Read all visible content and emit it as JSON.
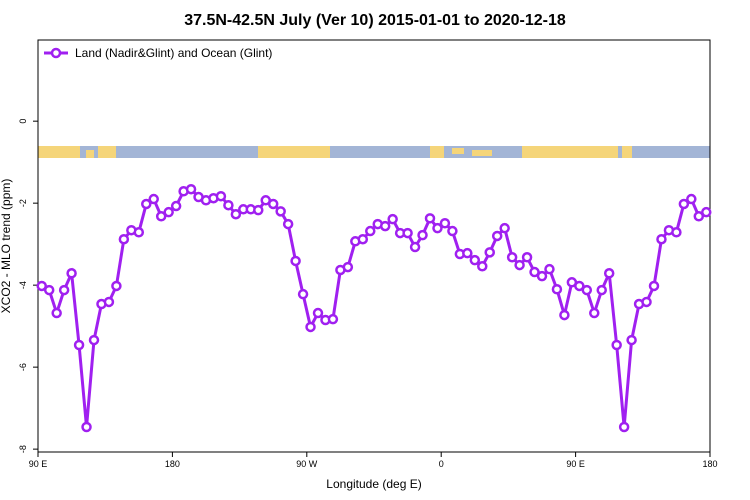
{
  "chart_data": {
    "type": "line",
    "title": "37.5N-42.5N July (Ver 10)   2015-01-01 to 2020-12-18",
    "x_label": "Longitude (deg E)",
    "y_label": "XCO2 - MLO trend (ppm)",
    "legend": "top-left",
    "x": [
      92.5,
      97.5,
      102.5,
      107.5,
      112.5,
      117.5,
      122.5,
      127.5,
      132.5,
      137.5,
      142.5,
      147.5,
      152.5,
      157.5,
      162.5,
      167.5,
      172.5,
      177.5,
      182.5,
      187.5,
      192.5,
      197.5,
      202.5,
      207.5,
      212.5,
      217.5,
      222.5,
      227.5,
      232.5,
      237.5,
      242.5,
      247.5,
      252.5,
      257.5,
      262.5,
      267.5,
      272.5,
      277.5,
      282.5,
      287.5,
      292.5,
      297.5,
      302.5,
      307.5,
      312.5,
      317.5,
      322.5,
      327.5,
      332.5,
      337.5,
      342.5,
      347.5,
      352.5,
      357.5,
      362.5,
      367.5,
      372.5,
      377.5,
      382.5,
      387.5,
      392.5,
      397.5,
      402.5,
      407.5,
      412.5,
      417.5,
      422.5,
      427.5,
      432.5,
      437.5,
      442.5,
      447.5,
      452.5,
      457.5,
      462.5,
      467.5,
      472.5,
      477.5,
      482.5,
      487.5,
      492.5,
      497.5,
      502.5,
      507.5,
      512.5,
      517.5,
      522.5,
      527.5,
      532.5,
      537.5
    ],
    "series": [
      {
        "name": "Land (Nadir&Glint) and Ocean (Glint)",
        "color": "#a020f0",
        "values": [
          -4.02,
          -4.12,
          -4.68,
          -4.12,
          -3.71,
          -5.46,
          -7.46,
          -5.34,
          -4.46,
          -4.41,
          -4.02,
          -2.88,
          -2.66,
          -2.71,
          -2.02,
          -1.9,
          -2.32,
          -2.22,
          -2.07,
          -1.71,
          -1.66,
          -1.85,
          -1.93,
          -1.88,
          -1.83,
          -2.05,
          -2.27,
          -2.15,
          -2.15,
          -2.17,
          -1.93,
          -2.02,
          -2.2,
          -2.51,
          -3.41,
          -4.22,
          -5.02,
          -4.68,
          -4.85,
          -4.83,
          -3.63,
          -3.56,
          -2.93,
          -2.88,
          -2.68,
          -2.51,
          -2.56,
          -2.39,
          -2.73,
          -2.73,
          -3.07,
          -2.78,
          -2.37,
          -2.61,
          -2.49,
          -2.68,
          -3.24,
          -3.22,
          -3.39,
          -3.54,
          -3.2,
          -2.8,
          -2.61,
          -3.32,
          -3.51,
          -3.32,
          -3.68,
          -3.78,
          -3.61,
          -4.1,
          -4.73,
          -3.93,
          -4.02,
          -4.12,
          -4.68,
          -4.12,
          -3.71,
          -5.46,
          -7.46,
          -5.34,
          -4.46,
          -4.41,
          -4.02,
          -2.88,
          -2.66,
          -2.71,
          -2.02,
          -1.9,
          -2.32,
          -2.22
        ]
      }
    ],
    "xlim": [
      90,
      540
    ],
    "xticks": [
      {
        "value": 90,
        "label": "90 E"
      },
      180,
      {
        "value": 270,
        "label": "90 W"
      },
      {
        "value": 360,
        "label": "0"
      },
      {
        "value": 450,
        "label": "90 E"
      },
      {
        "value": 540,
        "label": "180"
      }
    ],
    "ylim": [
      -8.07,
      1.98
    ],
    "yticks": [
      0,
      -2,
      -4,
      -6,
      -8
    ]
  }
}
